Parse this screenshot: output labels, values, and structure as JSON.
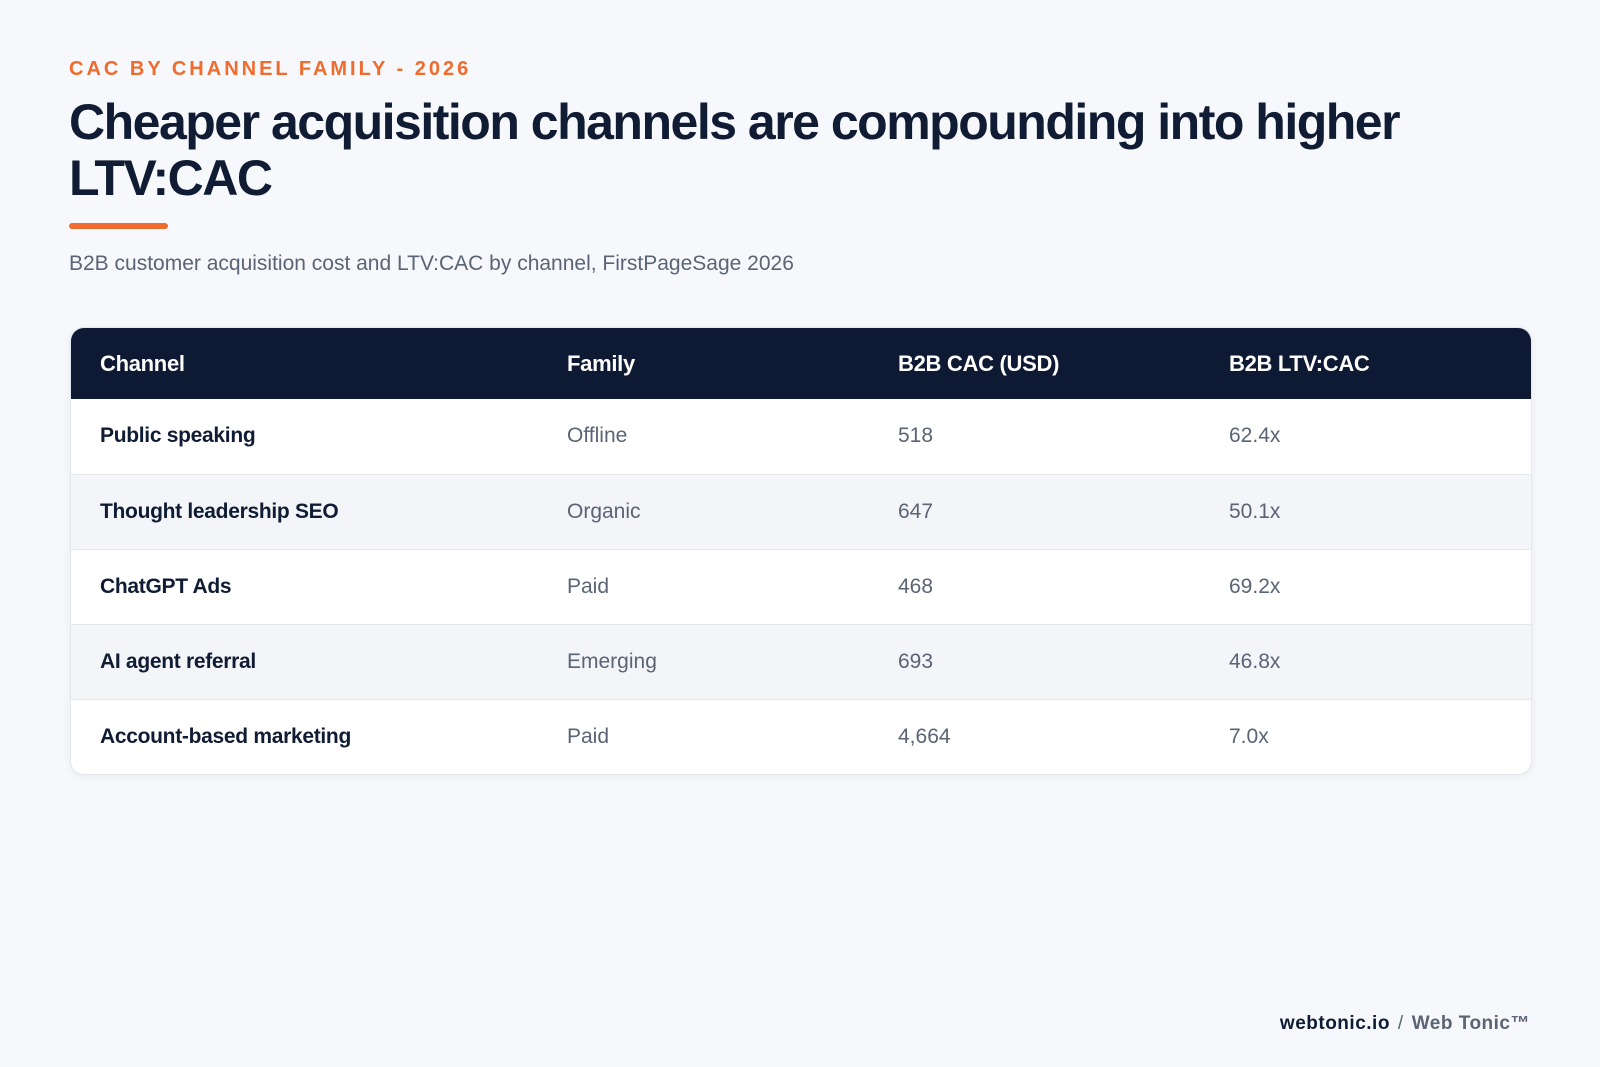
{
  "header": {
    "kicker": "CAC BY CHANNEL FAMILY - 2026",
    "title": "Cheaper acquisition channels are compounding into higher LTV:CAC",
    "subtitle": "B2B customer acquisition cost and LTV:CAC by channel, FirstPageSage 2026"
  },
  "colors": {
    "accent": "#ef6b2e",
    "header_bg": "#0e1a33",
    "text_dark": "#101c33",
    "text_muted": "#5a6474"
  },
  "chart_data": {
    "type": "table",
    "columns": [
      "Channel",
      "Family",
      "B2B CAC (USD)",
      "B2B LTV:CAC"
    ],
    "rows": [
      [
        "Public speaking",
        "Offline",
        "518",
        "62.4x"
      ],
      [
        "Thought leadership SEO",
        "Organic",
        "647",
        "50.1x"
      ],
      [
        "ChatGPT Ads",
        "Paid",
        "468",
        "69.2x"
      ],
      [
        "AI agent referral",
        "Emerging",
        "693",
        "46.8x"
      ],
      [
        "Account-based marketing",
        "Paid",
        "4,664",
        "7.0x"
      ]
    ]
  },
  "footer": {
    "site": "webtonic.io",
    "separator": "/",
    "brand": "Web Tonic™"
  }
}
